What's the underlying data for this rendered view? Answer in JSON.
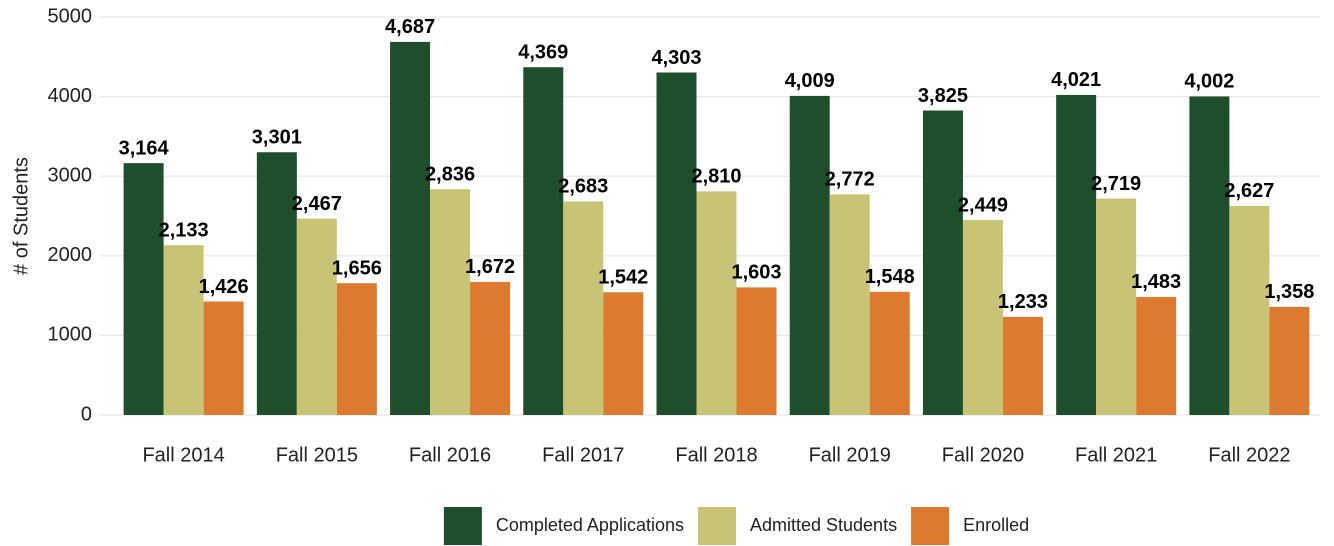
{
  "chart_data": {
    "type": "bar",
    "y_label": "# of Students",
    "categories": [
      "Fall 2014",
      "Fall 2015",
      "Fall 2016",
      "Fall 2017",
      "Fall 2018",
      "Fall 2019",
      "Fall 2020",
      "Fall 2021",
      "Fall 2022"
    ],
    "series": [
      {
        "name": "Completed Applications",
        "color": "#1f4e2c",
        "values": [
          3164,
          3301,
          4687,
          4369,
          4303,
          4009,
          3825,
          4021,
          4002
        ],
        "value_labels": [
          "3,164",
          "3,301",
          "4,687",
          "4,369",
          "4,303",
          "4,009",
          "3,825",
          "4,021",
          "4,002"
        ]
      },
      {
        "name": "Admitted Students",
        "color": "#c8c375",
        "values": [
          2133,
          2467,
          2836,
          2683,
          2810,
          2772,
          2449,
          2719,
          2627
        ],
        "value_labels": [
          "2,133",
          "2,467",
          "2,836",
          "2,683",
          "2,810",
          "2,772",
          "2,449",
          "2,719",
          "2,627"
        ]
      },
      {
        "name": "Enrolled",
        "color": "#dc7a30",
        "values": [
          1426,
          1656,
          1672,
          1542,
          1603,
          1548,
          1233,
          1483,
          1358
        ],
        "value_labels": [
          "1,426",
          "1,656",
          "1,672",
          "1,542",
          "1,603",
          "1,548",
          "1,233",
          "1,483",
          "1,358"
        ]
      }
    ],
    "ylim": [
      0,
      5000
    ],
    "yticks": [
      0,
      1000,
      2000,
      3000,
      4000,
      5000
    ],
    "grid": true,
    "legend": "bottom"
  }
}
